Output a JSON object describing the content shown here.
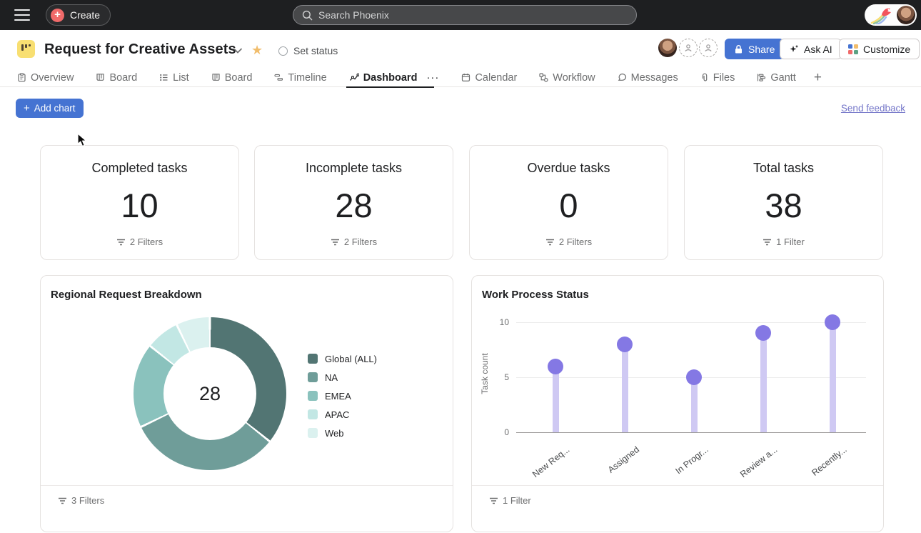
{
  "topbar": {
    "create_label": "Create",
    "search_placeholder": "Search Phoenix"
  },
  "header": {
    "title": "Request for Creative Assets",
    "set_status_label": "Set status",
    "share_label": "Share",
    "ask_ai_label": "Ask AI",
    "customize_label": "Customize"
  },
  "tabs": {
    "items": [
      {
        "label": "Overview"
      },
      {
        "label": "Board"
      },
      {
        "label": "List"
      },
      {
        "label": "Board"
      },
      {
        "label": "Timeline"
      },
      {
        "label": "Dashboard",
        "active": true
      },
      {
        "label": "Calendar"
      },
      {
        "label": "Workflow"
      },
      {
        "label": "Messages"
      },
      {
        "label": "Files"
      },
      {
        "label": "Gantt"
      }
    ],
    "overflow_label": "···",
    "plus_label": "+"
  },
  "toolbar": {
    "add_chart_plus": "+",
    "add_chart_label": "Add chart",
    "send_feedback_label": "Send feedback"
  },
  "stat_cards": [
    {
      "title": "Completed tasks",
      "value": "10",
      "filters_label": "2 Filters"
    },
    {
      "title": "Incomplete tasks",
      "value": "28",
      "filters_label": "2 Filters"
    },
    {
      "title": "Overdue tasks",
      "value": "0",
      "filters_label": "2 Filters"
    },
    {
      "title": "Total tasks",
      "value": "38",
      "filters_label": "1 Filter"
    }
  ],
  "chart_data": [
    {
      "type": "pie",
      "style": "donut",
      "title": "Regional Request Breakdown",
      "labels": [
        "Global (ALL)",
        "NA",
        "EMEA",
        "APAC",
        "Web"
      ],
      "values": [
        10,
        9,
        5,
        2,
        2
      ],
      "colors": [
        "#527573",
        "#6f9d99",
        "#8ac2bd",
        "#c2e7e4",
        "#dbf1ef"
      ],
      "center_total": "28",
      "legend_position": "right",
      "footer_label": "3 Filters"
    },
    {
      "type": "bar",
      "style": "lollipop",
      "title": "Work Process Status",
      "categories": [
        "New Req...",
        "Assigned",
        "In Progr...",
        "Review a...",
        "Recently..."
      ],
      "values": [
        6,
        8,
        5,
        9,
        10
      ],
      "ylabel": "Task count",
      "yticks": [
        0,
        5,
        10
      ],
      "ylim": [
        0,
        10
      ],
      "stem_color": "#cfc9f3",
      "dot_color": "#8478e4",
      "grid": true,
      "footer_label": "1 Filter"
    }
  ],
  "colors": {
    "accent_blue": "#4573d2",
    "topbar_bg": "#1e1f21",
    "star_gold": "#f1bd6c",
    "create_plus_bg": "#f06a6a",
    "link_purple": "#7577c9"
  }
}
